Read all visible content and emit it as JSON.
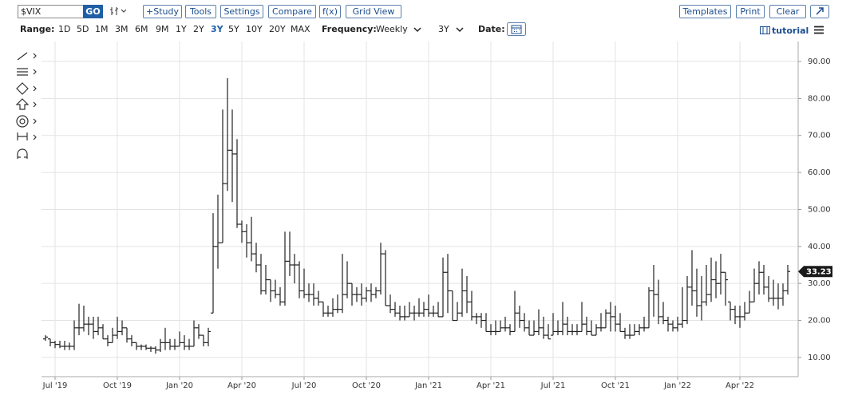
{
  "toolbar": {
    "symbol": "$VIX",
    "go": "GO",
    "buttons": [
      "+Study",
      "Tools",
      "Settings",
      "Compare",
      "f(x)",
      "Grid View"
    ],
    "right_buttons": [
      "Templates",
      "Print",
      "Clear"
    ]
  },
  "range_bar": {
    "range_label": "Range:",
    "ranges": [
      "1D",
      "5D",
      "1M",
      "3M",
      "6M",
      "9M",
      "1Y",
      "2Y",
      "3Y",
      "5Y",
      "10Y",
      "20Y",
      "MAX"
    ],
    "active_range": 8,
    "frequency_label": "Frequency:",
    "frequency": "Weekly",
    "period": "3Y",
    "date_label": "Date:",
    "tutorial": "tutorial"
  },
  "chart_data": {
    "type": "ohlc",
    "color": "#222222",
    "open": [
      15,
      15,
      14,
      13.5,
      13,
      13,
      13,
      18,
      18,
      19,
      19,
      17,
      18,
      15,
      14,
      16,
      17,
      18,
      15,
      14,
      13,
      13,
      12.5,
      12.5,
      12,
      14,
      14,
      13,
      13,
      14,
      13,
      13,
      18,
      16,
      14,
      22,
      40,
      41,
      57,
      66,
      65,
      46,
      44,
      41,
      38,
      35,
      28,
      31,
      28,
      27,
      25,
      36,
      35,
      35,
      28,
      27,
      27,
      26,
      25,
      22,
      22,
      23,
      23,
      27,
      30,
      27,
      27,
      26,
      28,
      27,
      28,
      38,
      24,
      23,
      22,
      21,
      21,
      22,
      22,
      22,
      23,
      22,
      22,
      21,
      33,
      28,
      20,
      22,
      28,
      25,
      21,
      21,
      20,
      17,
      17,
      17,
      18,
      18,
      17,
      22,
      20,
      18,
      16,
      17,
      18,
      16,
      16,
      17,
      17,
      19,
      17,
      17,
      17,
      19,
      17,
      16,
      18,
      18,
      22,
      21,
      19,
      17,
      16,
      16,
      17,
      18,
      18,
      28,
      27,
      21,
      20,
      19,
      18,
      19,
      20,
      29,
      28,
      24,
      25,
      27,
      31,
      30,
      33,
      25,
      23,
      21,
      21,
      22,
      25,
      30,
      33,
      29,
      26,
      26,
      26,
      28
    ],
    "high": [
      16,
      15,
      14.5,
      14.5,
      14.5,
      14,
      20,
      24.5,
      24,
      21,
      21,
      21,
      19,
      16,
      18,
      21,
      20,
      18,
      16,
      14,
      13.5,
      13.5,
      13,
      13,
      15,
      18,
      15,
      15,
      17,
      16,
      15,
      20,
      19,
      16,
      18,
      49,
      54,
      77,
      85.5,
      77,
      69,
      47,
      46,
      48,
      41,
      38,
      35,
      31,
      31,
      29,
      44,
      44,
      38,
      36,
      34,
      30,
      30,
      28,
      25,
      24,
      26,
      27,
      38,
      36,
      30,
      29,
      30,
      29,
      30,
      29,
      41,
      39,
      27,
      25,
      24,
      24,
      25,
      24,
      26,
      25,
      27,
      24,
      25,
      37,
      38,
      28,
      25,
      34,
      32,
      28,
      22,
      22,
      22,
      19,
      20,
      20,
      21,
      19,
      28,
      24,
      22,
      20,
      20,
      23,
      21,
      19,
      22,
      20,
      25,
      21,
      19,
      19,
      25,
      21,
      20,
      19,
      22,
      23,
      25,
      24,
      22,
      18,
      19,
      19,
      19,
      21,
      29,
      35,
      31,
      25,
      21,
      20,
      21,
      29,
      32,
      39,
      34,
      32,
      35,
      37,
      36,
      38,
      33,
      25,
      24,
      24,
      25,
      28,
      34,
      36,
      35,
      32,
      31,
      30,
      30,
      35
    ],
    "low": [
      14.5,
      13,
      12.5,
      12.5,
      12,
      12,
      12,
      16,
      17,
      16,
      15,
      16,
      15,
      13,
      14,
      15,
      16,
      14,
      13,
      12,
      12,
      12,
      11.5,
      11,
      11.5,
      12,
      12,
      12,
      13,
      12,
      12,
      13,
      15,
      13,
      13,
      22,
      34,
      41,
      55,
      52,
      45,
      41,
      37,
      36,
      33,
      27,
      27,
      25,
      26,
      24,
      24,
      32,
      30,
      26,
      26,
      25,
      24,
      24,
      21,
      21,
      21,
      22,
      22,
      26,
      24,
      25,
      24,
      25,
      25,
      26,
      27,
      24,
      22,
      21,
      20,
      20,
      21,
      20,
      21,
      21,
      21,
      21,
      21,
      21,
      22,
      20,
      20,
      21,
      22,
      20,
      19,
      18,
      17,
      16,
      16,
      17,
      17,
      16,
      17,
      18,
      17,
      16,
      16,
      16,
      15,
      15,
      16,
      16,
      16,
      16,
      16,
      16,
      17,
      16,
      16,
      16,
      17,
      18,
      17,
      17,
      17,
      15,
      15,
      16,
      16,
      17,
      18,
      21,
      19,
      19,
      17,
      17,
      17,
      18,
      19,
      24,
      21,
      20,
      24,
      25,
      26,
      27,
      24,
      20,
      19,
      18,
      20,
      22,
      25,
      27,
      27,
      25,
      24,
      23,
      24,
      27
    ],
    "close": [
      15.5,
      14,
      13.5,
      13,
      13,
      13,
      18,
      18,
      19,
      19,
      17,
      18,
      15,
      14,
      16,
      17,
      18,
      15,
      14,
      13,
      13,
      12.5,
      12.5,
      12,
      14,
      14,
      13,
      13,
      14,
      13,
      13,
      18,
      16,
      14,
      17,
      40,
      41,
      57,
      66,
      65,
      46,
      44,
      41,
      38,
      35,
      28,
      31,
      28,
      27,
      25,
      36,
      35,
      35,
      28,
      27,
      27,
      26,
      25,
      22,
      22,
      23,
      23,
      27,
      30,
      27,
      27,
      26,
      28,
      27,
      28,
      38,
      24,
      23,
      22,
      21,
      21,
      22,
      22,
      22,
      23,
      22,
      22,
      21,
      33,
      28,
      20,
      22,
      28,
      25,
      21,
      21,
      20,
      17,
      17,
      17,
      18,
      18,
      17,
      22,
      20,
      18,
      16,
      17,
      18,
      16,
      15,
      17,
      17,
      19,
      17,
      17,
      17,
      19,
      17,
      16,
      18,
      18,
      22,
      21,
      19,
      17,
      16,
      16,
      17,
      18,
      18,
      28,
      27,
      21,
      20,
      19,
      18,
      19,
      20,
      29,
      28,
      24,
      25,
      27,
      31,
      30,
      33,
      31,
      23,
      21,
      21,
      22,
      25,
      30,
      33,
      29,
      26,
      26,
      26,
      28,
      33.23
    ],
    "last_label": "33.23",
    "xlim": [
      0,
      155
    ],
    "xticks": [
      {
        "value": 2,
        "label": "Jul '19"
      },
      {
        "value": 15,
        "label": "Oct '19"
      },
      {
        "value": 28,
        "label": "Jan '20"
      },
      {
        "value": 41,
        "label": "Apr '20"
      },
      {
        "value": 54,
        "label": "Jul '20"
      },
      {
        "value": 67,
        "label": "Oct '20"
      },
      {
        "value": 80,
        "label": "Jan '21"
      },
      {
        "value": 93,
        "label": "Apr '21"
      },
      {
        "value": 106,
        "label": "Jul '21"
      },
      {
        "value": 119,
        "label": "Oct '21"
      },
      {
        "value": 132,
        "label": "Jan '22"
      },
      {
        "value": 145,
        "label": "Apr '22"
      }
    ],
    "ylim": [
      4.8,
      95.4
    ],
    "yticks": [
      {
        "value": 10,
        "label": "10.00"
      },
      {
        "value": 20,
        "label": "20.00"
      },
      {
        "value": 30,
        "label": "30.00"
      },
      {
        "value": 40,
        "label": "40.00"
      },
      {
        "value": 50,
        "label": "50.00"
      },
      {
        "value": 60,
        "label": "60.00"
      },
      {
        "value": 70,
        "label": "70.00"
      },
      {
        "value": 80,
        "label": "80.00"
      },
      {
        "value": 90,
        "label": "90.00"
      }
    ],
    "grid": true
  }
}
